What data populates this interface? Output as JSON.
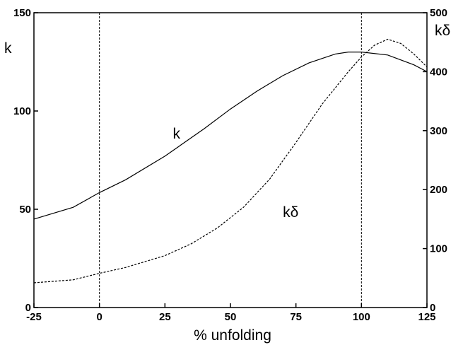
{
  "chart_data": {
    "type": "line",
    "xlabel": "% unfolding",
    "ylabel_left": "k",
    "ylabel_right": "kδ",
    "xlim": [
      -25,
      125
    ],
    "ylim_left": [
      0,
      150
    ],
    "ylim_right": [
      0,
      500
    ],
    "x_ticks": [
      -25,
      0,
      25,
      50,
      75,
      100,
      125
    ],
    "y_left_ticks": [
      0,
      50,
      100,
      150
    ],
    "y_right_ticks": [
      0,
      100,
      200,
      300,
      400,
      500
    ],
    "reference_lines_x": [
      0,
      100
    ],
    "grid": false,
    "series": [
      {
        "name": "k",
        "axis": "left",
        "style": "solid",
        "points": [
          [
            -25,
            45
          ],
          [
            -10,
            51
          ],
          [
            0,
            58.5
          ],
          [
            10,
            65
          ],
          [
            25,
            77
          ],
          [
            40,
            91
          ],
          [
            50,
            101
          ],
          [
            60,
            110
          ],
          [
            70,
            118
          ],
          [
            80,
            124.5
          ],
          [
            90,
            129
          ],
          [
            95,
            130
          ],
          [
            100,
            130
          ],
          [
            110,
            128.5
          ],
          [
            120,
            123.5
          ],
          [
            125,
            120
          ]
        ]
      },
      {
        "name": "kδ",
        "axis": "right",
        "style": "dashed",
        "points": [
          [
            -25,
            42
          ],
          [
            -10,
            47
          ],
          [
            0,
            58
          ],
          [
            10,
            68
          ],
          [
            25,
            88
          ],
          [
            35,
            108
          ],
          [
            45,
            135
          ],
          [
            55,
            170
          ],
          [
            65,
            218
          ],
          [
            75,
            280
          ],
          [
            85,
            345
          ],
          [
            95,
            400
          ],
          [
            100,
            425
          ],
          [
            105,
            445
          ],
          [
            110,
            455
          ],
          [
            115,
            448
          ],
          [
            120,
            430
          ],
          [
            125,
            408
          ]
        ]
      }
    ],
    "annotations": [
      {
        "text": "k",
        "x": 28,
        "y_left": 86
      },
      {
        "text": "kδ",
        "x": 70,
        "y_left": 46
      }
    ]
  }
}
